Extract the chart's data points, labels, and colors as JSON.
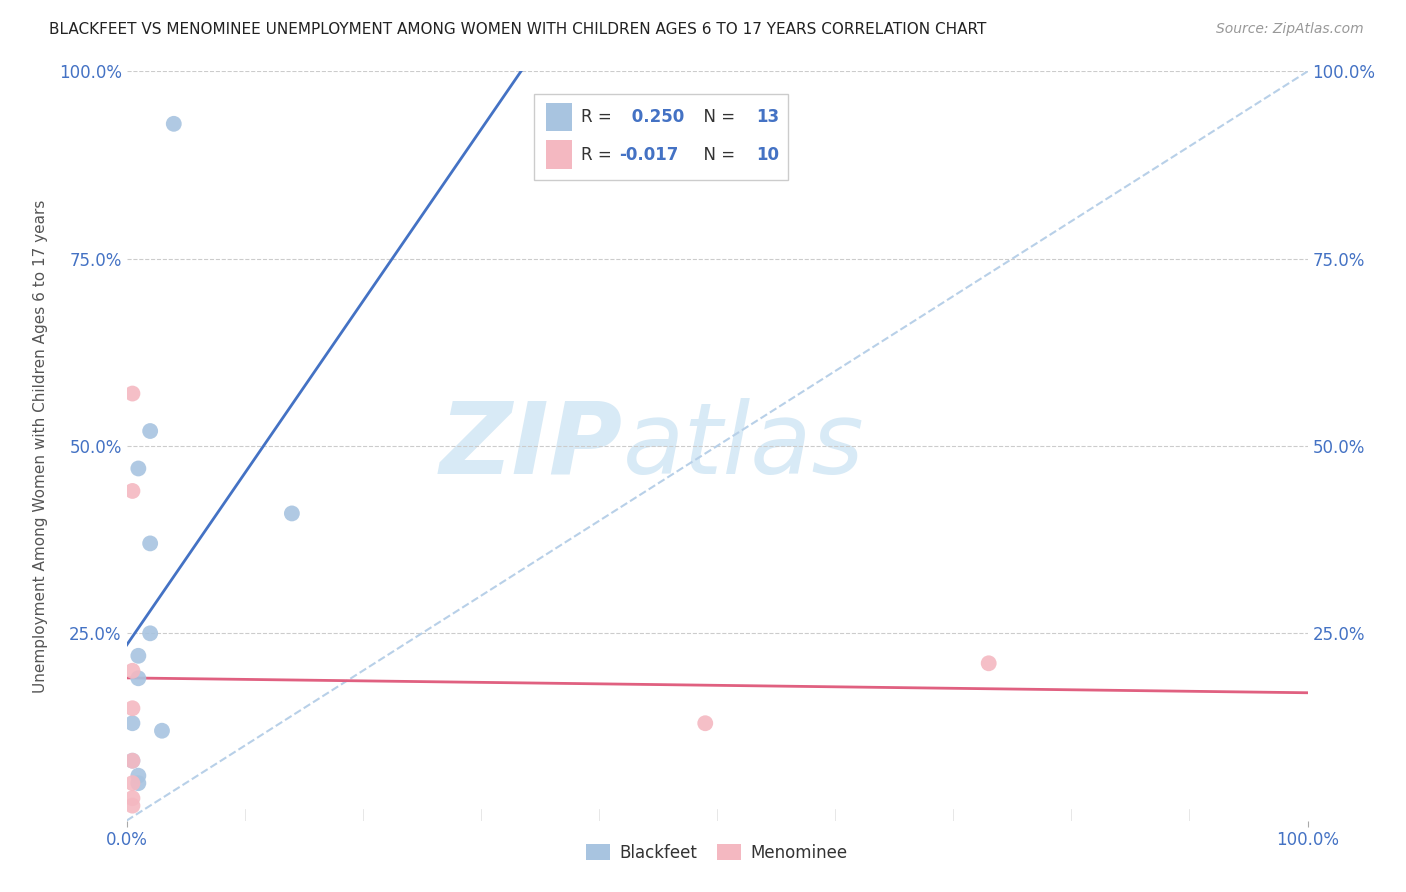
{
  "title": "BLACKFEET VS MENOMINEE UNEMPLOYMENT AMONG WOMEN WITH CHILDREN AGES 6 TO 17 YEARS CORRELATION CHART",
  "source": "Source: ZipAtlas.com",
  "ylabel": "Unemployment Among Women with Children Ages 6 to 17 years",
  "xlim": [
    0,
    1.0
  ],
  "ylim": [
    0,
    1.0
  ],
  "blackfeet_x": [
    0.02,
    0.04,
    0.01,
    0.02,
    0.02,
    0.01,
    0.01,
    0.005,
    0.005,
    0.14,
    0.01,
    0.03,
    0.01
  ],
  "blackfeet_y": [
    0.52,
    0.93,
    0.47,
    0.37,
    0.25,
    0.22,
    0.19,
    0.13,
    0.08,
    0.41,
    0.06,
    0.12,
    0.05
  ],
  "menominee_x": [
    0.005,
    0.005,
    0.005,
    0.005,
    0.005,
    0.005,
    0.005,
    0.005,
    0.49,
    0.73
  ],
  "menominee_y": [
    0.57,
    0.44,
    0.2,
    0.15,
    0.08,
    0.05,
    0.03,
    0.02,
    0.13,
    0.21
  ],
  "blackfeet_color": "#a8c4e0",
  "menominee_color": "#f4b8c1",
  "blackfeet_line_color": "#4472c4",
  "menominee_line_color": "#e06080",
  "diag_line_color": "#b8d0e8",
  "blackfeet_R": 0.25,
  "blackfeet_N": 13,
  "menominee_R": -0.017,
  "menominee_N": 10,
  "marker_size": 130,
  "background_color": "#ffffff",
  "watermark_zip": "ZIP",
  "watermark_atlas": "atlas",
  "watermark_color": "#d8eaf6",
  "legend_label_blackfeet": "Blackfeet",
  "legend_label_menominee": "Menominee",
  "ytick_positions": [
    0.0,
    0.25,
    0.5,
    0.75,
    1.0
  ],
  "ytick_labels": [
    "",
    "25.0%",
    "50.0%",
    "75.0%",
    "100.0%"
  ],
  "xtick_positions": [
    0.0,
    1.0
  ],
  "xtick_labels": [
    "0.0%",
    "100.0%"
  ]
}
